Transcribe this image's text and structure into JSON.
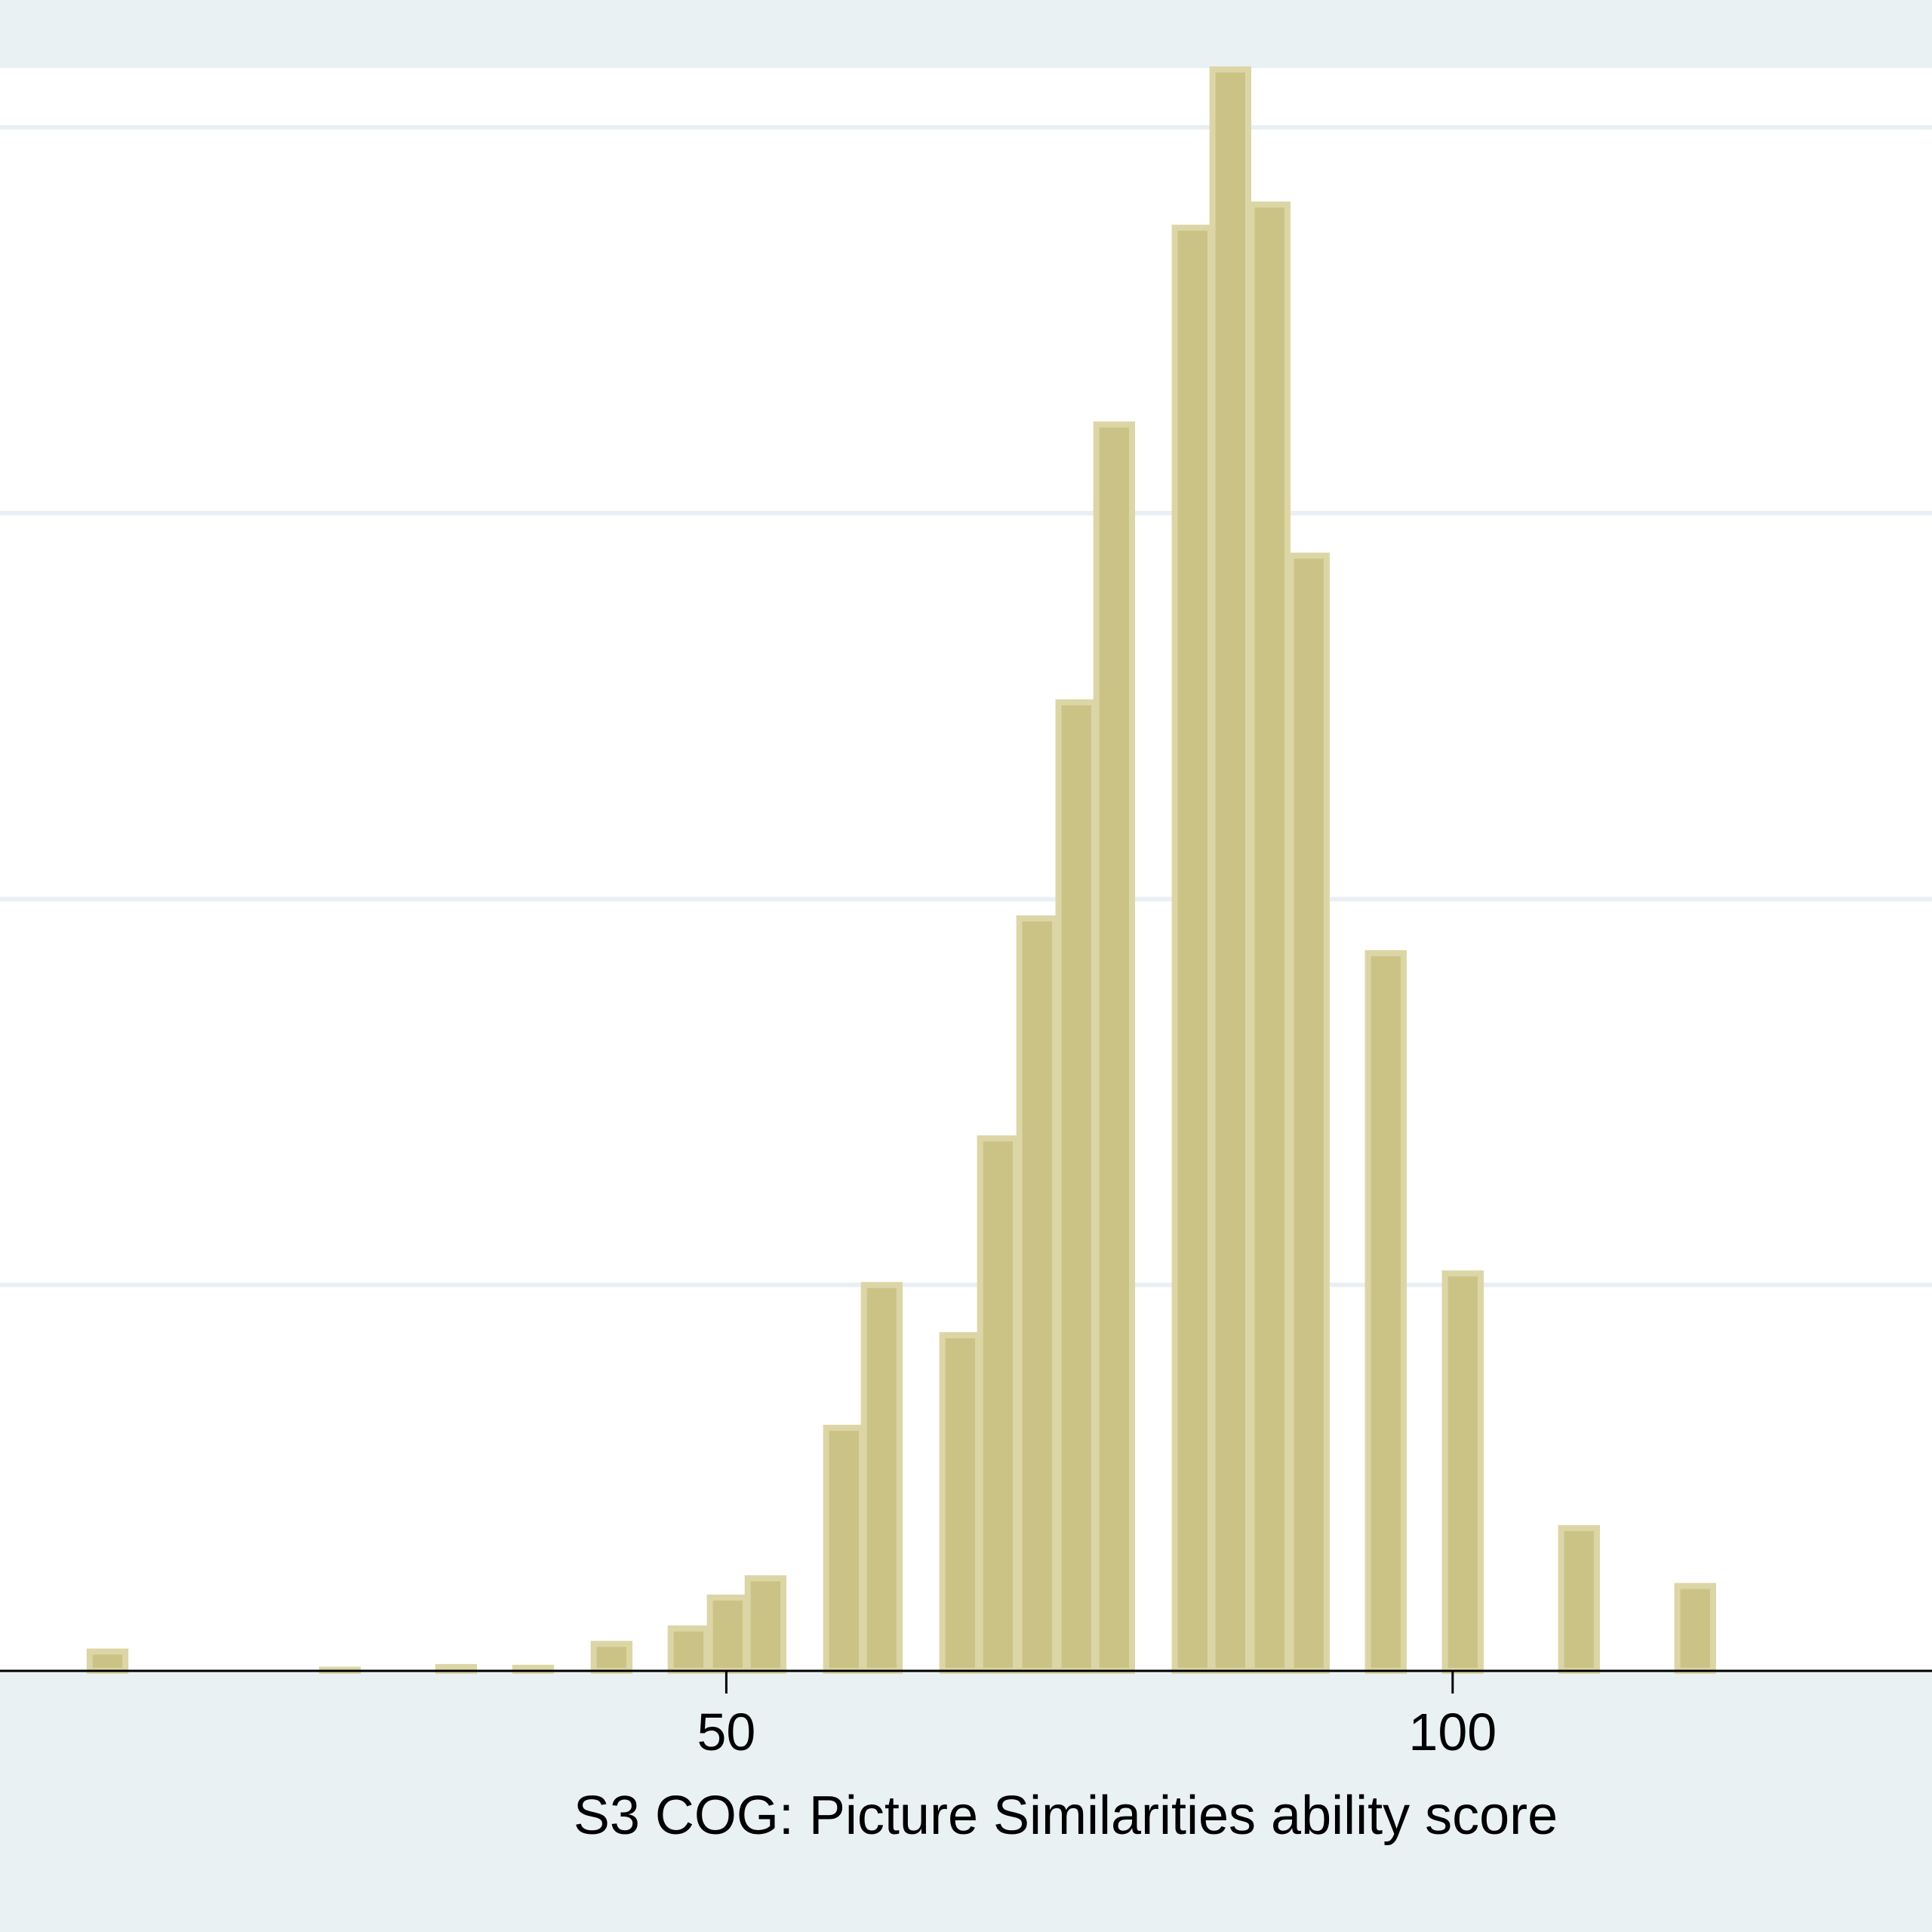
{
  "chart_data": {
    "type": "bar",
    "xlabel": "S3 COG: Picture Similarities ability score",
    "ylabel": "",
    "xlim": [
      0,
      133
    ],
    "ylim": [
      0,
      0.0433
    ],
    "x_ticks": [
      50,
      100
    ],
    "y_gridlines": [
      0.01,
      0.02,
      0.03,
      0.04
    ],
    "grid": true,
    "bin_width": 2.67,
    "bars": [
      {
        "x": 7.4,
        "y": 0.0005
      },
      {
        "x": 23.4,
        "y": 3e-05
      },
      {
        "x": 31.4,
        "y": 0.0001
      },
      {
        "x": 36.7,
        "y": 8e-05
      },
      {
        "x": 42.1,
        "y": 0.0007
      },
      {
        "x": 47.4,
        "y": 0.0011
      },
      {
        "x": 50.1,
        "y": 0.0019
      },
      {
        "x": 52.7,
        "y": 0.0024
      },
      {
        "x": 58.1,
        "y": 0.0063
      },
      {
        "x": 60.7,
        "y": 0.01
      },
      {
        "x": 66.1,
        "y": 0.0087
      },
      {
        "x": 68.7,
        "y": 0.0138
      },
      {
        "x": 71.4,
        "y": 0.0195
      },
      {
        "x": 74.1,
        "y": 0.0251
      },
      {
        "x": 76.7,
        "y": 0.0323
      },
      {
        "x": 82.1,
        "y": 0.0374
      },
      {
        "x": 84.7,
        "y": 0.0415
      },
      {
        "x": 87.4,
        "y": 0.038
      },
      {
        "x": 90.1,
        "y": 0.0289
      },
      {
        "x": 95.4,
        "y": 0.0186
      },
      {
        "x": 100.7,
        "y": 0.0103
      },
      {
        "x": 108.7,
        "y": 0.0037
      },
      {
        "x": 116.7,
        "y": 0.0022
      }
    ]
  }
}
